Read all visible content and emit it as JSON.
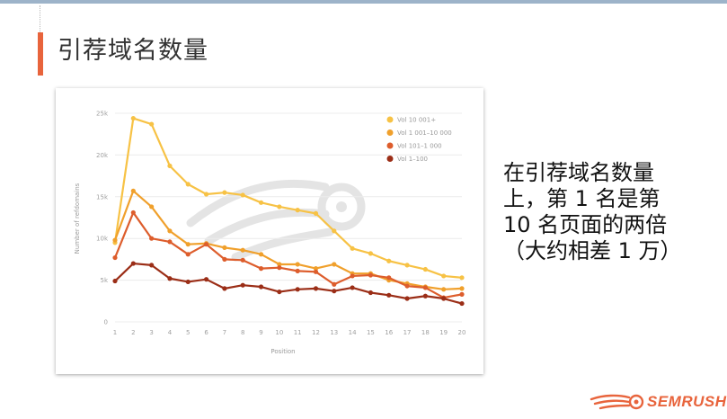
{
  "slide": {
    "title": "引荐域名数量",
    "side_text": [
      "在引荐域名数量",
      "上，第 1 名是第",
      "10 名页面的两倍",
      "（大约相差 1 万）"
    ]
  },
  "brand": {
    "name": "SEMRUSH",
    "logo_icon": "semrush-flame-icon",
    "color": "#e8643c"
  },
  "chart_data": {
    "type": "line",
    "xlabel": "Position",
    "ylabel": "Number of refdomains",
    "x": [
      1,
      2,
      3,
      4,
      5,
      6,
      7,
      8,
      9,
      10,
      11,
      12,
      13,
      14,
      15,
      16,
      17,
      18,
      19,
      20
    ],
    "ylim": [
      0,
      25000
    ],
    "yticks": [
      0,
      5000,
      10000,
      15000,
      20000,
      25000
    ],
    "ytick_labels": [
      "0",
      "5k",
      "10k",
      "15k",
      "20k",
      "25k"
    ],
    "grid": true,
    "legend_position": "top-right",
    "series": [
      {
        "name": "Vol 10 001+",
        "color": "#f7c245",
        "values": [
          9500,
          24400,
          23700,
          18700,
          16500,
          15300,
          15500,
          15200,
          14300,
          13800,
          13400,
          13000,
          10900,
          8800,
          8200,
          7300,
          6800,
          6300,
          5500,
          5300
        ]
      },
      {
        "name": "Vol 1 001–10 000",
        "color": "#f0a02c",
        "values": [
          9800,
          15700,
          13800,
          10900,
          9300,
          9400,
          8900,
          8600,
          8100,
          6900,
          6900,
          6400,
          6900,
          5800,
          5800,
          5000,
          4600,
          4200,
          3900,
          4000
        ]
      },
      {
        "name": "Vol 101–1 000",
        "color": "#dd5d2c",
        "values": [
          7700,
          13100,
          10000,
          9600,
          8100,
          9300,
          7500,
          7400,
          6400,
          6500,
          6100,
          6000,
          4500,
          5500,
          5600,
          5300,
          4300,
          4100,
          2900,
          3300
        ]
      },
      {
        "name": "Vol 1–100",
        "color": "#9b2e17",
        "values": [
          4900,
          7000,
          6800,
          5200,
          4800,
          5100,
          4000,
          4400,
          4200,
          3600,
          3900,
          4000,
          3700,
          4100,
          3500,
          3200,
          2800,
          3100,
          2800,
          2200
        ]
      }
    ]
  }
}
